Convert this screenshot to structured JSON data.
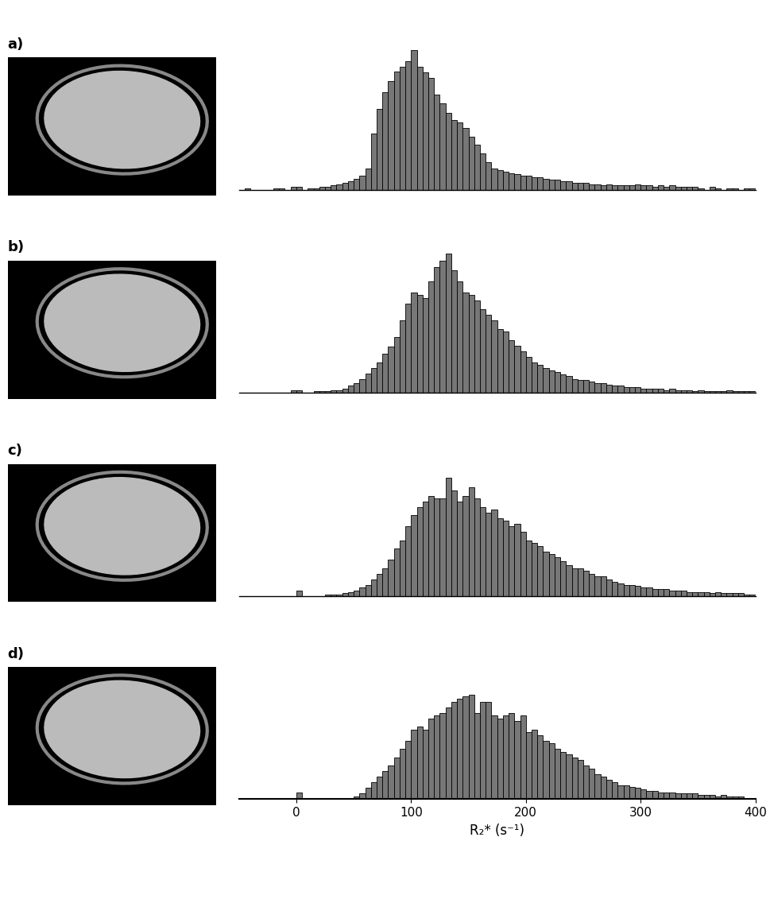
{
  "chart_data": [
    {
      "type": "histogram",
      "title": "a)",
      "bins": [
        -50,
        -45,
        -40,
        -35,
        -30,
        -25,
        -20,
        -15,
        -10,
        -5,
        0,
        5,
        10,
        15,
        20,
        25,
        30,
        35,
        40,
        45,
        50,
        55,
        60,
        65,
        70,
        75,
        80,
        85,
        90,
        95,
        100,
        105,
        110,
        115,
        120,
        125,
        130,
        135,
        140,
        145,
        150,
        155,
        160,
        165,
        170,
        175,
        180,
        185,
        190,
        195,
        200,
        205,
        210,
        215,
        220,
        225,
        230,
        235,
        240,
        245,
        250,
        255,
        260,
        265,
        270,
        275,
        280,
        285,
        290,
        295,
        300,
        305,
        310,
        315,
        320,
        325,
        330,
        335,
        340,
        345,
        350,
        355,
        360,
        365,
        370,
        375,
        380,
        385,
        390,
        395,
        400
      ],
      "values": [
        0,
        1,
        0,
        0,
        0,
        0,
        1,
        1,
        0,
        2,
        2,
        0,
        1,
        1,
        2,
        2,
        3,
        4,
        5,
        6,
        8,
        10,
        15,
        40,
        58,
        70,
        78,
        85,
        88,
        92,
        100,
        88,
        84,
        80,
        68,
        62,
        55,
        50,
        48,
        44,
        38,
        32,
        26,
        20,
        15,
        14,
        13,
        12,
        11,
        10,
        10,
        9,
        9,
        8,
        7,
        7,
        6,
        6,
        5,
        5,
        5,
        4,
        4,
        3,
        4,
        3,
        3,
        3,
        3,
        4,
        3,
        3,
        2,
        3,
        2,
        3,
        2,
        2,
        2,
        2,
        1,
        0,
        2,
        1,
        0,
        1,
        1,
        0,
        1,
        1
      ],
      "color": "#777777",
      "xlim": [
        -50,
        400
      ],
      "ylim": [
        0,
        105
      ],
      "tick_labels": false
    },
    {
      "type": "histogram",
      "title": "b)",
      "bins": [
        -50,
        -45,
        -40,
        -35,
        -30,
        -25,
        -20,
        -15,
        -10,
        -5,
        0,
        5,
        10,
        15,
        20,
        25,
        30,
        35,
        40,
        45,
        50,
        55,
        60,
        65,
        70,
        75,
        80,
        85,
        90,
        95,
        100,
        105,
        110,
        115,
        120,
        125,
        130,
        135,
        140,
        145,
        150,
        155,
        160,
        165,
        170,
        175,
        180,
        185,
        190,
        195,
        200,
        205,
        210,
        215,
        220,
        225,
        230,
        235,
        240,
        245,
        250,
        255,
        260,
        265,
        270,
        275,
        280,
        285,
        290,
        295,
        300,
        305,
        310,
        315,
        320,
        325,
        330,
        335,
        340,
        345,
        350,
        355,
        360,
        365,
        370,
        375,
        380,
        385,
        390,
        395,
        400
      ],
      "values": [
        0,
        0,
        0,
        0,
        0,
        0,
        0,
        0,
        0,
        2,
        2,
        0,
        0,
        1,
        1,
        1,
        2,
        2,
        3,
        5,
        7,
        10,
        14,
        18,
        22,
        28,
        33,
        40,
        52,
        64,
        72,
        70,
        68,
        80,
        90,
        95,
        100,
        88,
        80,
        72,
        70,
        66,
        60,
        56,
        52,
        46,
        44,
        38,
        34,
        30,
        26,
        22,
        20,
        18,
        16,
        15,
        13,
        12,
        10,
        9,
        9,
        8,
        7,
        7,
        6,
        5,
        5,
        4,
        4,
        4,
        3,
        3,
        3,
        3,
        2,
        3,
        2,
        2,
        2,
        1,
        2,
        1,
        1,
        1,
        1,
        2,
        1,
        1,
        1,
        1
      ],
      "color": "#777777",
      "xlim": [
        -50,
        400
      ],
      "ylim": [
        0,
        105
      ],
      "tick_labels": false
    },
    {
      "type": "histogram",
      "title": "c)",
      "bins": [
        -50,
        -45,
        -40,
        -35,
        -30,
        -25,
        -20,
        -15,
        -10,
        -5,
        0,
        5,
        10,
        15,
        20,
        25,
        30,
        35,
        40,
        45,
        50,
        55,
        60,
        65,
        70,
        75,
        80,
        85,
        90,
        95,
        100,
        105,
        110,
        115,
        120,
        125,
        130,
        135,
        140,
        145,
        150,
        155,
        160,
        165,
        170,
        175,
        180,
        185,
        190,
        195,
        200,
        205,
        210,
        215,
        220,
        225,
        230,
        235,
        240,
        245,
        250,
        255,
        260,
        265,
        270,
        275,
        280,
        285,
        290,
        295,
        300,
        305,
        310,
        315,
        320,
        325,
        330,
        335,
        340,
        345,
        350,
        355,
        360,
        365,
        370,
        375,
        380,
        385,
        390,
        395,
        400
      ],
      "values": [
        0,
        0,
        0,
        0,
        0,
        0,
        0,
        0,
        0,
        0,
        4,
        0,
        0,
        0,
        0,
        1,
        1,
        1,
        2,
        3,
        4,
        6,
        8,
        12,
        16,
        20,
        26,
        34,
        40,
        50,
        58,
        64,
        68,
        72,
        70,
        70,
        85,
        76,
        68,
        72,
        78,
        70,
        64,
        60,
        62,
        56,
        54,
        50,
        52,
        46,
        40,
        38,
        36,
        32,
        30,
        28,
        25,
        22,
        20,
        20,
        18,
        16,
        14,
        14,
        12,
        10,
        9,
        8,
        8,
        7,
        6,
        6,
        5,
        5,
        5,
        4,
        4,
        4,
        3,
        3,
        3,
        3,
        2,
        3,
        2,
        2,
        2,
        2,
        1,
        1
      ],
      "color": "#777777",
      "xlim": [
        -50,
        400
      ],
      "ylim": [
        0,
        105
      ],
      "tick_labels": false
    },
    {
      "type": "histogram",
      "title": "d)",
      "x_label": "R₂* (s⁻¹)",
      "bins": [
        -50,
        -45,
        -40,
        -35,
        -30,
        -25,
        -20,
        -15,
        -10,
        -5,
        0,
        5,
        10,
        15,
        20,
        25,
        30,
        35,
        40,
        45,
        50,
        55,
        60,
        65,
        70,
        75,
        80,
        85,
        90,
        95,
        100,
        105,
        110,
        115,
        120,
        125,
        130,
        135,
        140,
        145,
        150,
        155,
        160,
        165,
        170,
        175,
        180,
        185,
        190,
        195,
        200,
        205,
        210,
        215,
        220,
        225,
        230,
        235,
        240,
        245,
        250,
        255,
        260,
        265,
        270,
        275,
        280,
        285,
        290,
        295,
        300,
        305,
        310,
        315,
        320,
        325,
        330,
        335,
        340,
        345,
        350,
        355,
        360,
        365,
        370,
        375,
        380,
        385,
        390,
        395,
        400
      ],
      "values": [
        0,
        0,
        0,
        0,
        0,
        0,
        0,
        0,
        0,
        0,
        5,
        0,
        0,
        0,
        0,
        0,
        0,
        0,
        0,
        0,
        2,
        4,
        8,
        12,
        16,
        20,
        24,
        30,
        36,
        42,
        50,
        52,
        50,
        58,
        60,
        62,
        66,
        70,
        72,
        74,
        75,
        62,
        70,
        70,
        60,
        58,
        60,
        62,
        56,
        60,
        48,
        50,
        46,
        42,
        40,
        36,
        34,
        32,
        30,
        28,
        24,
        22,
        18,
        16,
        14,
        12,
        10,
        10,
        9,
        8,
        7,
        6,
        6,
        5,
        5,
        5,
        4,
        4,
        4,
        4,
        3,
        3,
        3,
        2,
        3,
        2,
        2,
        2,
        1,
        1
      ],
      "color": "#777777",
      "xlim": [
        -50,
        400
      ],
      "xticks": [
        0,
        100,
        200,
        300,
        400
      ],
      "ylim": [
        0,
        105
      ],
      "tick_labels": "x"
    }
  ]
}
